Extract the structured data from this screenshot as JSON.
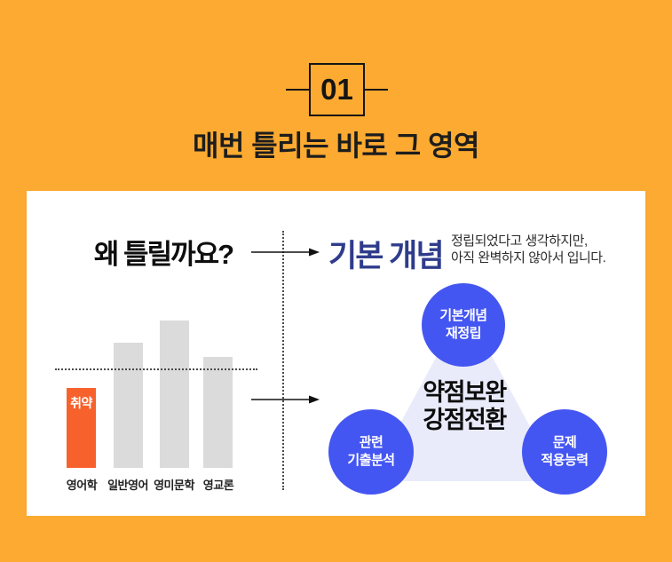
{
  "colors": {
    "background": "#FCAA31",
    "accent_orange": "#F7622C",
    "bar_gray": "#DBDBDB",
    "node_blue": "#4456F1",
    "heading_navy": "#2F3C8C",
    "triangle_lavender": "#E9EBFA"
  },
  "header": {
    "badge_number": "01",
    "title": "매번 틀리는 바로 그 영역"
  },
  "card": {
    "left": {
      "heading": "왜 틀릴까요?",
      "weak_badge": "취약"
    },
    "right": {
      "heading": "기본 개념",
      "description_line1": "정립되었다고 생각하지만,",
      "description_line2": "아직 완벽하지 않아서 입니다.",
      "center_line1": "약점보완",
      "center_line2": "강점전환",
      "nodes": [
        {
          "line1": "기본개념",
          "line2": "재정립"
        },
        {
          "line1": "관련",
          "line2": "기출분석"
        },
        {
          "line1": "문제",
          "line2": "적용능력"
        }
      ]
    }
  },
  "chart_data": {
    "type": "bar",
    "categories": [
      "영어학",
      "일반영어",
      "영미문학",
      "영교론"
    ],
    "values": [
      90,
      141,
      166,
      125
    ],
    "units": "relative bar height, px (no axis shown)",
    "threshold_line_value": 110,
    "highlight_index": 0,
    "highlight_label": "취약",
    "bar_colors": [
      "#F7622C",
      "#DBDBDB",
      "#DBDBDB",
      "#DBDBDB"
    ],
    "title": "",
    "xlabel": "",
    "ylabel": "",
    "grid": false,
    "legend": false
  }
}
